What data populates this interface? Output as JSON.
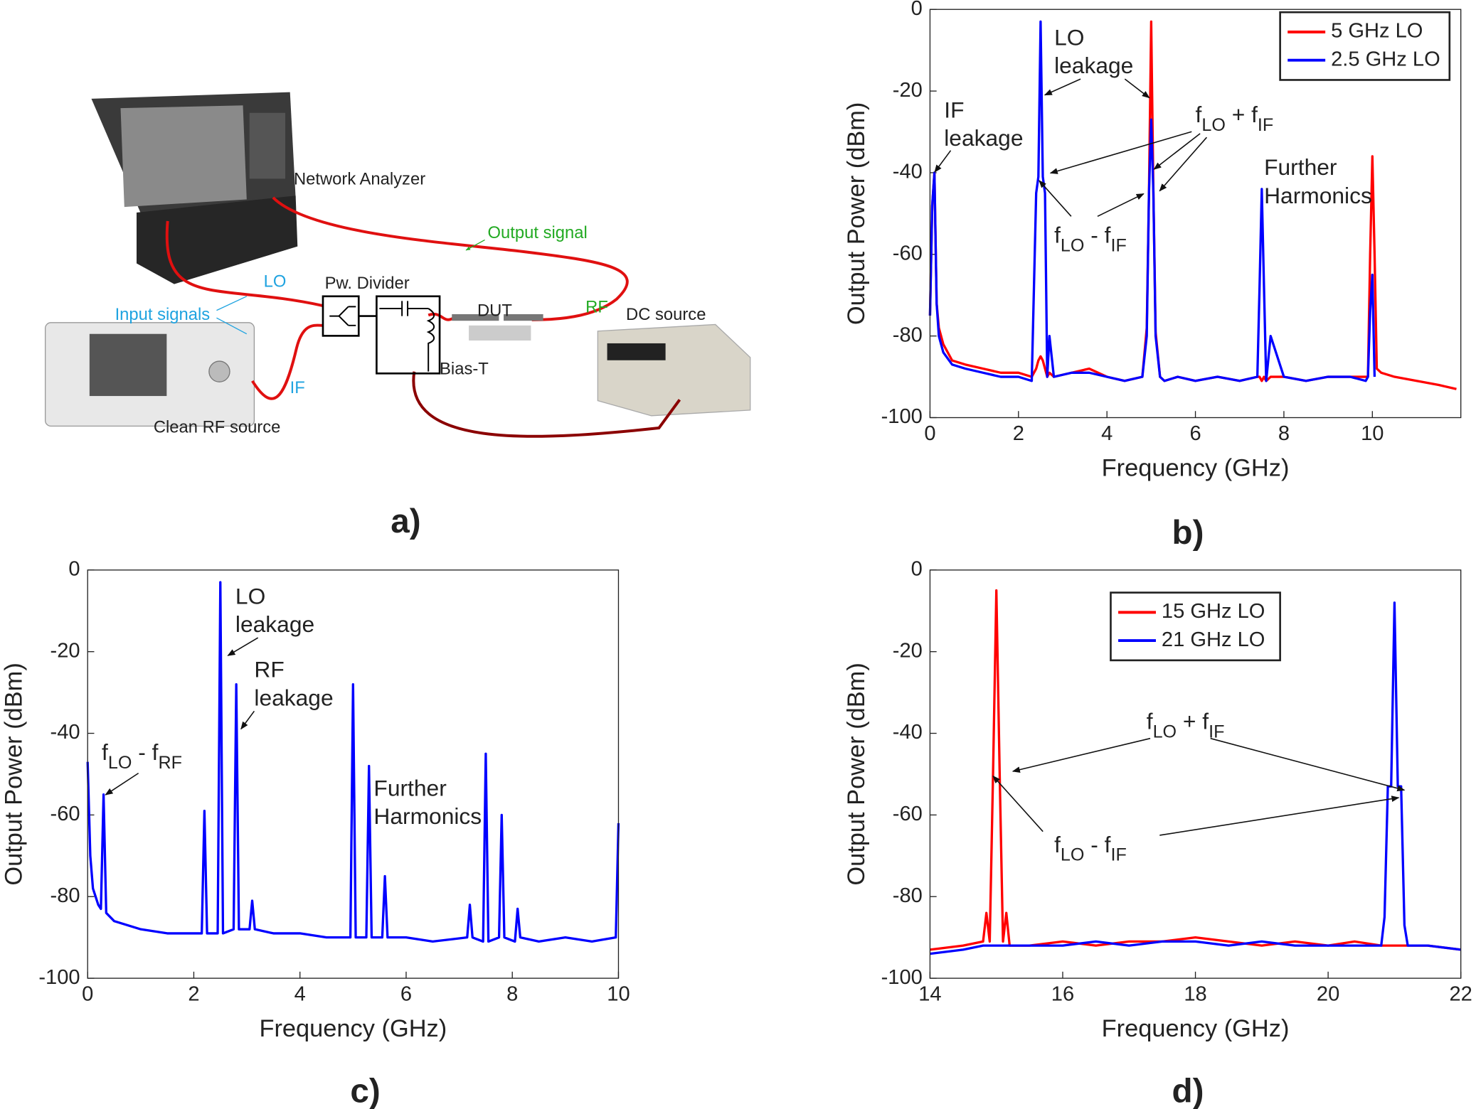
{
  "diagram": {
    "panel_label": "a)",
    "network_analyzer": "Network Analyzer",
    "output_signal": "Output signal",
    "lo": "LO",
    "power_divider": "Pw. Divider",
    "input_signals": "Input signals",
    "rf": "RF",
    "dut": "DUT",
    "dc_source": "DC source",
    "bias_t": "Bias-T",
    "if": "IF",
    "rf_source": "Clean RF source"
  },
  "chart_data": [
    {
      "type": "line",
      "panel_label": "b)",
      "x_label": "Frequency (GHz)",
      "y_label": "Output Power (dBm)",
      "legend": "upper right",
      "x": [
        0,
        0.05,
        0.1,
        0.15,
        0.2,
        0.3,
        0.5,
        0.8,
        1.2,
        1.6,
        2.0,
        2.3,
        2.4,
        2.45,
        2.5,
        2.55,
        2.6,
        2.65,
        2.7,
        2.8,
        3.2,
        3.6,
        4.0,
        4.4,
        4.8,
        4.9,
        4.95,
        5.0,
        5.05,
        5.1,
        5.2,
        5.3,
        5.6,
        6.0,
        6.5,
        7.0,
        7.4,
        7.45,
        7.5,
        7.55,
        7.6,
        7.7,
        8.0,
        8.5,
        9.0,
        9.5,
        9.85,
        9.9,
        9.95,
        10.0,
        10.05,
        10.1,
        10.2,
        10.5,
        11.0,
        11.5,
        11.9
      ],
      "series": [
        {
          "name": "5 GHz LO",
          "color": "#ff0000",
          "values": [
            -75,
            -48,
            -40,
            -72,
            -78,
            -82,
            -86,
            -87,
            -88,
            -89,
            -89,
            -90,
            -88,
            -86,
            -85,
            -86,
            -88,
            -90,
            -89,
            -90,
            -89,
            -88,
            -90,
            -91,
            -90,
            -78,
            -45,
            -3,
            -45,
            -79,
            -90,
            -91,
            -90,
            -91,
            -90,
            -91,
            -90,
            -90,
            -91,
            -90,
            -91,
            -90,
            -90,
            -91,
            -90,
            -90,
            -90,
            -90,
            -60,
            -36,
            -60,
            -88,
            -89,
            -90,
            -91,
            -92,
            -93
          ]
        },
        {
          "name": "2.5 GHz LO",
          "color": "#0000ff",
          "values": [
            -75,
            -48,
            -40,
            -72,
            -80,
            -84,
            -87,
            -88,
            -89,
            -90,
            -90,
            -91,
            -45,
            -41,
            -3,
            -41,
            -45,
            -90,
            -80,
            -90,
            -89,
            -89,
            -90,
            -91,
            -90,
            -80,
            -45,
            -27,
            -45,
            -80,
            -90,
            -91,
            -90,
            -91,
            -90,
            -91,
            -90,
            -68,
            -44,
            -68,
            -91,
            -80,
            -90,
            -91,
            -90,
            -90,
            -91,
            -90,
            -74,
            -65,
            -90,
            null,
            null,
            null,
            null,
            null,
            null
          ]
        }
      ],
      "xlim": [
        0,
        12
      ],
      "ylim": [
        -100,
        0
      ],
      "xticks": [
        0,
        2,
        4,
        6,
        8,
        10
      ],
      "yticks": [
        0,
        -20,
        -40,
        -60,
        -80,
        -100
      ],
      "annotations": [
        {
          "lines": [
            [
              "IF"
            ],
            [
              "leakage"
            ]
          ]
        },
        {
          "lines": [
            [
              "LO"
            ],
            [
              "leakage"
            ]
          ]
        },
        {
          "lines": [
            [
              "f",
              "LO",
              " + f",
              "IF"
            ]
          ]
        },
        {
          "lines": [
            [
              "f",
              "LO",
              " - f",
              "IF"
            ]
          ]
        },
        {
          "lines": [
            [
              "Further"
            ],
            [
              "Harmonics"
            ]
          ]
        }
      ]
    },
    {
      "type": "line",
      "panel_label": "c)",
      "x_label": "Frequency (GHz)",
      "y_label": "Output Power (dBm)",
      "x": [
        0,
        0.05,
        0.1,
        0.2,
        0.25,
        0.3,
        0.35,
        0.5,
        1,
        1.5,
        2.15,
        2.2,
        2.25,
        2.45,
        2.5,
        2.55,
        2.75,
        2.8,
        2.85,
        3.05,
        3.1,
        3.15,
        3.5,
        4,
        4.5,
        4.95,
        5.0,
        5.05,
        5.25,
        5.3,
        5.35,
        5.55,
        5.6,
        5.65,
        6,
        6.5,
        7.15,
        7.2,
        7.25,
        7.45,
        7.5,
        7.55,
        7.75,
        7.8,
        7.85,
        8.05,
        8.1,
        8.15,
        8.5,
        9,
        9.5,
        9.95,
        10
      ],
      "series": [
        {
          "color": "#0000ff",
          "values": [
            -47,
            -70,
            -78,
            -82,
            -83,
            -55,
            -84,
            -86,
            -88,
            -89,
            -89,
            -59,
            -89,
            -89,
            -3,
            -89,
            -88,
            -28,
            -88,
            -88,
            -81,
            -88,
            -89,
            -89,
            -90,
            -90,
            -28,
            -90,
            -90,
            -48,
            -90,
            -90,
            -75,
            -90,
            -90,
            -91,
            -90,
            -82,
            -90,
            -91,
            -45,
            -91,
            -90,
            -60,
            -90,
            -91,
            -83,
            -90,
            -91,
            -90,
            -91,
            -90,
            -62
          ]
        }
      ],
      "xlim": [
        0,
        10
      ],
      "ylim": [
        -100,
        0
      ],
      "xticks": [
        0,
        2,
        4,
        6,
        8,
        10
      ],
      "yticks": [
        0,
        -20,
        -40,
        -60,
        -80,
        -100
      ],
      "annotations": [
        {
          "lines": [
            [
              "LO"
            ],
            [
              "leakage"
            ]
          ]
        },
        {
          "lines": [
            [
              "RF"
            ],
            [
              "leakage"
            ]
          ]
        },
        {
          "lines": [
            [
              "f",
              "LO",
              " - f",
              "RF"
            ]
          ]
        },
        {
          "lines": [
            [
              "Further"
            ],
            [
              "Harmonics"
            ]
          ]
        }
      ]
    },
    {
      "type": "line",
      "panel_label": "d)",
      "x_label": "Frequency (GHz)",
      "y_label": "Output Power (dBm)",
      "legend": "upper center",
      "x": [
        14,
        14.5,
        14.8,
        14.85,
        14.9,
        14.95,
        15.0,
        15.05,
        15.1,
        15.15,
        15.2,
        15.5,
        16,
        16.5,
        17,
        17.5,
        18,
        18.5,
        19,
        19.5,
        20,
        20.4,
        20.8,
        20.85,
        20.9,
        20.95,
        21.0,
        21.05,
        21.1,
        21.15,
        21.2,
        21.5,
        22
      ],
      "series": [
        {
          "name": "15 GHz LO",
          "color": "#ff0000",
          "values": [
            -93,
            -92,
            -91,
            -84,
            -91,
            -50,
            -5,
            -50,
            -91,
            -84,
            -92,
            -92,
            -91,
            -92,
            -91,
            -91,
            -90,
            -91,
            -92,
            -91,
            -92,
            -91,
            -92,
            -92,
            -92,
            -92,
            -92,
            -92,
            -92,
            -92,
            -92,
            -92,
            -93
          ]
        },
        {
          "name": "21 GHz LO",
          "color": "#0000ff",
          "values": [
            -94,
            -93,
            -92,
            -92,
            -92,
            -92,
            -92,
            -92,
            -92,
            -92,
            -92,
            -92,
            -92,
            -91,
            -92,
            -91,
            -91,
            -92,
            -91,
            -92,
            -92,
            -92,
            -92,
            -85,
            -53,
            -53,
            -8,
            -53,
            -53,
            -87,
            -92,
            -92,
            -93
          ]
        }
      ],
      "xlim": [
        14,
        22
      ],
      "ylim": [
        -100,
        0
      ],
      "xticks": [
        14,
        16,
        18,
        20,
        22
      ],
      "yticks": [
        0,
        -20,
        -40,
        -60,
        -80,
        -100
      ],
      "annotations": [
        {
          "lines": [
            [
              "f",
              "LO",
              " + f",
              "IF"
            ]
          ]
        },
        {
          "lines": [
            [
              "f",
              "LO",
              " - f",
              "IF"
            ]
          ]
        }
      ]
    }
  ]
}
